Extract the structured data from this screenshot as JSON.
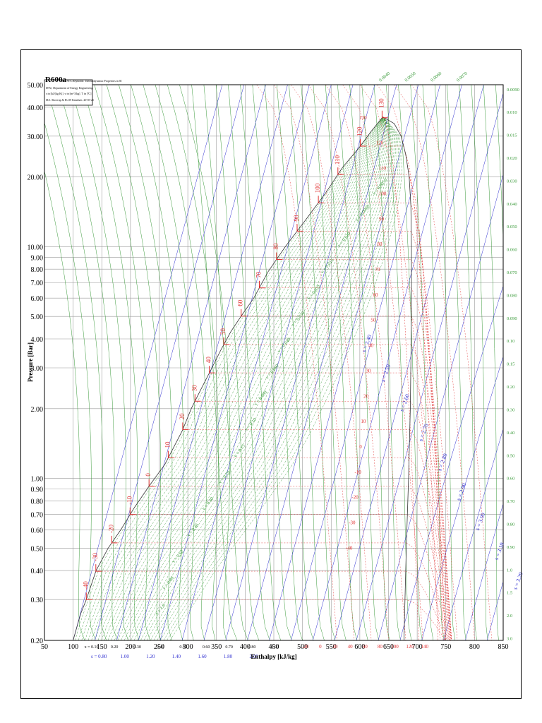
{
  "chart_data": {
    "type": "line",
    "title": "R600a",
    "subtitle_lines": [
      "Ref :W.C.Reynolds: Thermodynamic Properties in SI",
      "DTU, Department of Energy Engineering",
      "s in [kJ/(kg K)]. v in [m^3/kg]. T in [ºC]",
      "M.J. Skovrup & H.J.H Knudsen. 20-03-21"
    ],
    "xlabel": "Enthalpy [kJ/kg]",
    "ylabel": "Pressure [Bar]",
    "xlim": [
      50,
      850
    ],
    "ylim": [
      0.2,
      50
    ],
    "yscale": "log",
    "grid": true,
    "x_ticks": [
      "50",
      "100",
      "150",
      "200",
      "250",
      "300",
      "350",
      "400",
      "450",
      "500",
      "550",
      "600",
      "650",
      "700",
      "750",
      "800",
      "850"
    ],
    "y_ticks": [
      "0.20",
      "0.30",
      "0.40",
      "0.50",
      "0.60",
      "0.70",
      "0.80",
      "0.90",
      "1.00",
      "2.00",
      "3.00",
      "4.00",
      "5.00",
      "6.00",
      "7.00",
      "8.00",
      "9.00",
      "10.00",
      "20.00",
      "30.00",
      "40.00",
      "50.00"
    ],
    "critical_point": {
      "h": 640,
      "p": 36.3
    },
    "saturated_liquid": {
      "h": [
        100,
        113,
        123,
        140,
        161,
        183,
        207,
        233,
        260,
        290,
        306,
        322,
        342,
        358,
        375,
        395,
        415,
        440,
        470,
        505,
        540,
        570,
        600,
        620,
        640
      ],
      "p": [
        0.2,
        0.26,
        0.3,
        0.4,
        0.5,
        0.6,
        0.75,
        0.93,
        1.15,
        1.6,
        2.0,
        2.4,
        3.0,
        3.6,
        4.3,
        5.1,
        6.0,
        7.8,
        10.0,
        13.0,
        17.0,
        22.0,
        27.0,
        31.5,
        36.3
      ]
    },
    "saturated_vapor": {
      "h": [
        640,
        660,
        672,
        680,
        686,
        689,
        690,
        690,
        688,
        685,
        681,
        677
      ],
      "p": [
        36.3,
        34.0,
        30.0,
        25.0,
        20.0,
        15.0,
        10.0,
        5.0,
        2.0,
        1.0,
        0.5,
        0.2
      ]
    },
    "isotherm_labels_left": [
      "-40",
      "-30",
      "-20",
      "-10",
      "0",
      "10",
      "20",
      "30",
      "40",
      "50",
      "60",
      "70",
      "80",
      "90",
      "100",
      "110",
      "120",
      "130"
    ],
    "isotherm_labels_right": [
      "130",
      "120",
      "110",
      "100",
      "90",
      "80",
      "70",
      "60",
      "50",
      "40",
      "30",
      "20",
      "10",
      "0",
      "-10",
      "-20",
      "-30",
      "-40"
    ],
    "isotherm_bottom_labels": [
      "-20",
      "0",
      "20",
      "40",
      "60",
      "80",
      "100",
      "120",
      "140"
    ],
    "quality_labels": [
      "x = 0.10",
      "0.20",
      "0.30",
      "0.40",
      "0.50",
      "0.60",
      "0.70",
      "0.80",
      "0.90"
    ],
    "entropy_labels_bottom": [
      "s = 0.80",
      "1.00",
      "1.20",
      "1.40",
      "1.60",
      "1.80",
      "2.00"
    ],
    "entropy_labels_right": [
      "s = 2.40",
      "s = 2.50",
      "s = 2.60",
      "s = 2.70",
      "s = 2.80",
      "s = 2.90",
      "s = 3.00",
      "s = 3.10",
      "s = 3.20"
    ],
    "volume_labels_right": [
      "0.0090",
      "0.010",
      "0.015",
      "0.020",
      "0.030",
      "0.040",
      "0.050",
      "0.060",
      "0.070",
      "0.080",
      "0.090",
      "0.10",
      "0.15",
      "0.20",
      "0.30",
      "0.40",
      "0.50",
      "0.60",
      "0.70",
      "0.80",
      "0.90",
      "1.0",
      "1.5",
      "2.0",
      "3.0"
    ],
    "volume_labels_top": [
      "0.0040",
      "0.0050",
      "0.0060",
      "0.0070"
    ],
    "volume_labels_inside": [
      "v = 0.0050",
      "v = 0.0060",
      "v = 0.010",
      "v = 0.015",
      "v = 0.020",
      "v = 0.030",
      "v = 0.040",
      "v = 0.060",
      "v = 0.080",
      "v = 0.10",
      "v = 0.15",
      "v = 0.20",
      "v = 0.30",
      "v = 0.40",
      "v = 0.60",
      "v = 0.80",
      "v = 1.0"
    ],
    "colors": {
      "isotherm": "#e03030",
      "isochore": "#3a9a3a",
      "isentrope": "#3030d0",
      "grid": "#9a9a9a",
      "saturation": "#333333"
    }
  }
}
